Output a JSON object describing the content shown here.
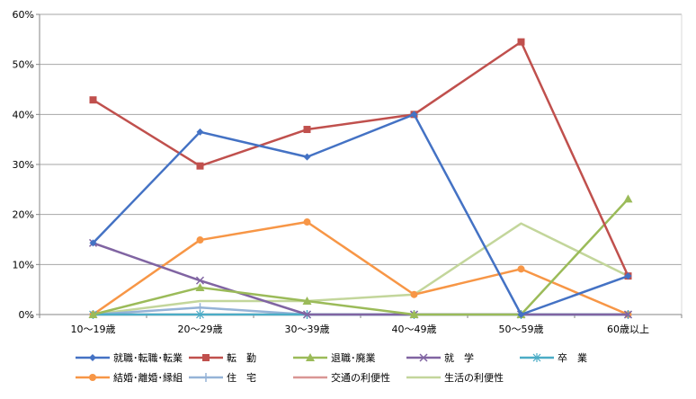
{
  "chart_data": {
    "type": "line",
    "title": "",
    "xlabel": "",
    "ylabel": "",
    "categories": [
      "10～19歳",
      "20～29歳",
      "30～39歳",
      "40～49歳",
      "50～59歳",
      "60歳以上"
    ],
    "ylim": [
      0,
      60
    ],
    "yticks": [
      0,
      10,
      20,
      30,
      40,
      50,
      60
    ],
    "ytick_suffix": "%",
    "grid": true,
    "legend_position": "bottom",
    "series": [
      {
        "name": "就職･転職･転業",
        "color": "#4472C4",
        "marker": "diamond",
        "values": [
          14.3,
          36.5,
          31.5,
          40.0,
          0.0,
          7.7
        ]
      },
      {
        "name": "転　勤",
        "color": "#C0504D",
        "marker": "square",
        "values": [
          42.9,
          29.7,
          37.0,
          40.0,
          54.5,
          7.7
        ]
      },
      {
        "name": "退職･廃業",
        "color": "#9BBB59",
        "marker": "triangle",
        "values": [
          0.0,
          5.4,
          2.7,
          0.0,
          0.0,
          23.1
        ]
      },
      {
        "name": "就　学",
        "color": "#8064A2",
        "marker": "x",
        "values": [
          14.3,
          6.8,
          0.0,
          0.0,
          0.0,
          0.0
        ]
      },
      {
        "name": "卒　業",
        "color": "#4BACC6",
        "marker": "star",
        "values": [
          0.0,
          0.0,
          0.0,
          0.0,
          0.0,
          0.0
        ]
      },
      {
        "name": "結婚･離婚･縁組",
        "color": "#F79646",
        "marker": "circle",
        "values": [
          0.0,
          14.9,
          18.5,
          4.0,
          9.1,
          0.0
        ]
      },
      {
        "name": "住　宅",
        "color": "#95B3D7",
        "marker": "plus",
        "values": [
          0.0,
          1.4,
          0.0,
          0.0,
          0.0,
          0.0
        ]
      },
      {
        "name": "交通の利便性",
        "color": "#D99694",
        "marker": "none",
        "values": [
          0.0,
          0.0,
          0.0,
          0.0,
          0.0,
          0.0
        ]
      },
      {
        "name": "生活の利便性",
        "color": "#C3D69B",
        "marker": "none",
        "values": [
          0.0,
          2.7,
          2.7,
          4.0,
          18.2,
          7.7
        ]
      }
    ]
  }
}
